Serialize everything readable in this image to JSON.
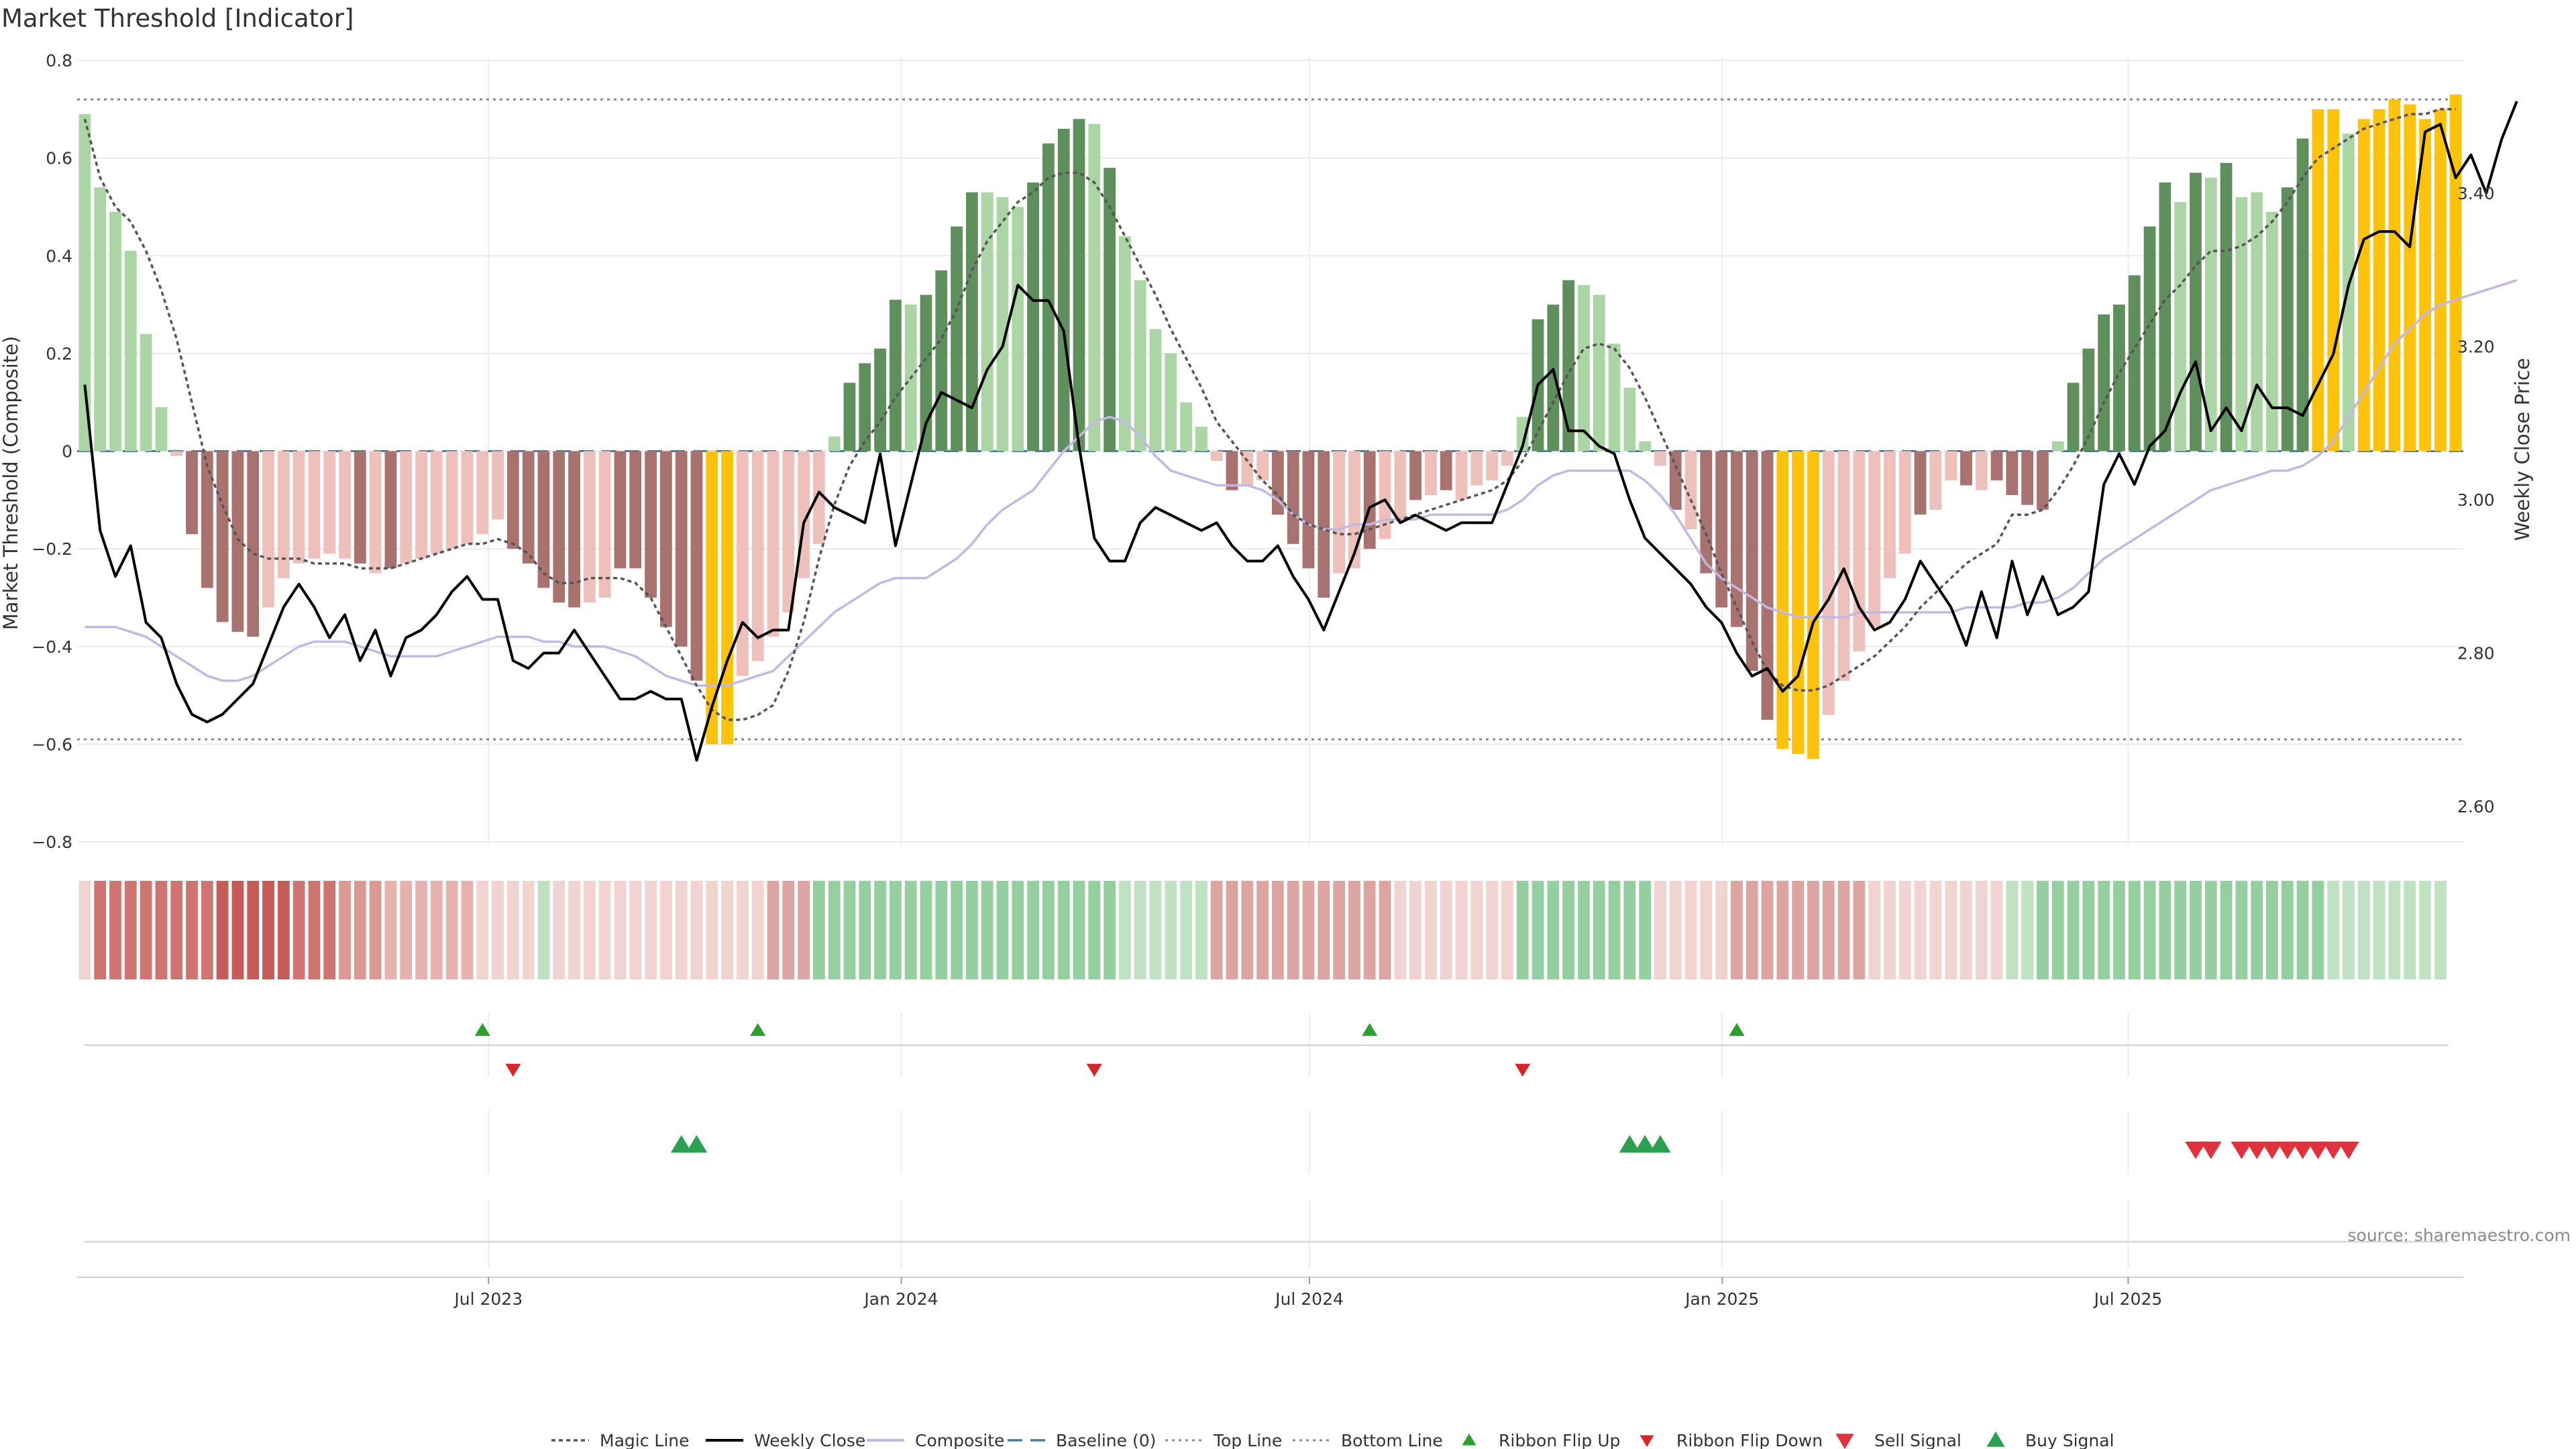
{
  "chart_data": {
    "type": "bar",
    "title": "Market Threshold [Indicator]",
    "ylabel_left": "Market Threshold (Composite)",
    "ylabel_right": "Weekly Close Price",
    "source": "source: sharemaestro.com",
    "left_axis": {
      "ylim": [
        -0.8,
        0.8
      ],
      "ticks": [
        "0.8",
        "0.6",
        "0.4",
        "0.2",
        "0",
        "−0.2",
        "−0.4",
        "−0.6",
        "−0.8"
      ],
      "tick_values": [
        0.8,
        0.6,
        0.4,
        0.2,
        0,
        -0.2,
        -0.4,
        -0.6,
        -0.8
      ]
    },
    "right_axis": {
      "ylim": [
        2.52,
        3.6
      ],
      "ticks": [
        "3.40",
        "3.20",
        "3.00",
        "2.80",
        "2.60"
      ],
      "tick_values": [
        3.4,
        3.2,
        3.0,
        2.8,
        2.6
      ]
    },
    "x_axis": {
      "start": "2023-01-02",
      "end": "2025-11-24",
      "ticks": [
        {
          "label": "Jul 2023",
          "date": "2023-07-01"
        },
        {
          "label": "Jan 2024",
          "date": "2024-01-01"
        },
        {
          "label": "Jul 2024",
          "date": "2024-07-01"
        },
        {
          "label": "Jan 2025",
          "date": "2025-01-01"
        },
        {
          "label": "Jul 2025",
          "date": "2025-07-01"
        }
      ]
    },
    "grid": true,
    "legend_position": "bottom-center",
    "colors": {
      "strong_up": "#5e8f5c",
      "weak_up": "#acd5a6",
      "strong_down": "#a77270",
      "weak_down": "#edc0bc",
      "extreme": "#fdc20b",
      "weekly_close": "#000000",
      "magic_line": "#555555",
      "composite": "#c4b8e2",
      "baseline": "#4a7ba0",
      "ribbon_flip_up": "#2ca02c",
      "ribbon_flip_down": "#d62728",
      "sell_signal": "#e0323c",
      "buy_signal": "#2ca050"
    },
    "reference_lines": {
      "top_line": 0.72,
      "bottom_line": -0.59,
      "baseline": 0
    },
    "histogram": {
      "values": [
        0.69,
        0.54,
        0.49,
        0.41,
        0.24,
        0.09,
        -0.01,
        -0.17,
        -0.28,
        -0.35,
        -0.37,
        -0.38,
        -0.32,
        -0.26,
        -0.23,
        -0.22,
        -0.21,
        -0.22,
        -0.23,
        -0.25,
        -0.24,
        -0.23,
        -0.22,
        -0.21,
        -0.2,
        -0.19,
        -0.17,
        -0.14,
        -0.2,
        -0.23,
        -0.28,
        -0.31,
        -0.32,
        -0.31,
        -0.3,
        -0.24,
        -0.24,
        -0.3,
        -0.36,
        -0.4,
        -0.47,
        -0.6,
        -0.6,
        -0.46,
        -0.43,
        -0.38,
        -0.33,
        -0.26,
        -0.19,
        0.03,
        0.14,
        0.18,
        0.21,
        0.31,
        0.3,
        0.32,
        0.37,
        0.46,
        0.53,
        0.53,
        0.52,
        0.5,
        0.55,
        0.63,
        0.66,
        0.68,
        0.67,
        0.58,
        0.44,
        0.35,
        0.25,
        0.2,
        0.1,
        0.05,
        -0.02,
        -0.08,
        -0.07,
        -0.06,
        -0.13,
        -0.19,
        -0.24,
        -0.3,
        -0.25,
        -0.24,
        -0.2,
        -0.18,
        -0.14,
        -0.1,
        -0.09,
        -0.08,
        -0.1,
        -0.07,
        -0.06,
        -0.03,
        0.07,
        0.27,
        0.3,
        0.35,
        0.34,
        0.32,
        0.22,
        0.13,
        0.02,
        -0.03,
        -0.12,
        -0.16,
        -0.25,
        -0.32,
        -0.36,
        -0.45,
        -0.55,
        -0.61,
        -0.62,
        -0.63,
        -0.54,
        -0.47,
        -0.41,
        -0.36,
        -0.26,
        -0.21,
        -0.13,
        -0.12,
        -0.06,
        -0.07,
        -0.08,
        -0.06,
        -0.09,
        -0.11,
        -0.12,
        0.02,
        0.14,
        0.21,
        0.28,
        0.3,
        0.36,
        0.46,
        0.55,
        0.51,
        0.57,
        0.56,
        0.59,
        0.52,
        0.53,
        0.49,
        0.54,
        0.64,
        0.7,
        0.7,
        0.65,
        0.68,
        0.7,
        0.72,
        0.71,
        0.68,
        0.7,
        0.73
      ],
      "styles": [
        "wu",
        "wu",
        "wu",
        "wu",
        "wu",
        "wu",
        "wd",
        "sd",
        "sd",
        "sd",
        "sd",
        "sd",
        "wd",
        "wd",
        "wd",
        "wd",
        "wd",
        "wd",
        "sd",
        "wd",
        "sd",
        "wd",
        "wd",
        "wd",
        "wd",
        "wd",
        "wd",
        "wd",
        "sd",
        "sd",
        "sd",
        "sd",
        "sd",
        "wd",
        "wd",
        "sd",
        "sd",
        "sd",
        "sd",
        "sd",
        "sd",
        "ex",
        "ex",
        "wd",
        "wd",
        "wd",
        "wd",
        "wd",
        "wd",
        "wu",
        "su",
        "su",
        "su",
        "su",
        "wu",
        "su",
        "su",
        "su",
        "su",
        "wu",
        "wu",
        "wu",
        "su",
        "su",
        "su",
        "su",
        "wu",
        "su",
        "wu",
        "wu",
        "wu",
        "wu",
        "wu",
        "wu",
        "wd",
        "sd",
        "wd",
        "wd",
        "sd",
        "sd",
        "sd",
        "sd",
        "wd",
        "wd",
        "sd",
        "wd",
        "wd",
        "sd",
        "wd",
        "sd",
        "wd",
        "wd",
        "wd",
        "wd",
        "wu",
        "su",
        "su",
        "su",
        "wu",
        "wu",
        "wu",
        "wu",
        "wu",
        "wd",
        "sd",
        "wd",
        "sd",
        "sd",
        "sd",
        "sd",
        "sd",
        "ex",
        "ex",
        "ex",
        "wd",
        "wd",
        "wd",
        "wd",
        "wd",
        "wd",
        "sd",
        "wd",
        "wd",
        "sd",
        "wd",
        "sd",
        "sd",
        "sd",
        "sd",
        "wu",
        "su",
        "su",
        "su",
        "su",
        "su",
        "su",
        "su",
        "wu",
        "su",
        "wu",
        "su",
        "wu",
        "wu",
        "wu",
        "su",
        "su",
        "ex",
        "ex",
        "wu",
        "ex",
        "ex",
        "ex",
        "ex",
        "ex",
        "ex",
        "ex"
      ]
    },
    "weekly_close": {
      "values": [
        3.15,
        2.96,
        2.9,
        2.94,
        2.84,
        2.82,
        2.76,
        2.72,
        2.71,
        2.72,
        2.74,
        2.76,
        2.81,
        2.86,
        2.89,
        2.86,
        2.82,
        2.85,
        2.79,
        2.83,
        2.77,
        2.82,
        2.83,
        2.85,
        2.88,
        2.9,
        2.87,
        2.87,
        2.79,
        2.78,
        2.8,
        2.8,
        2.83,
        2.8,
        2.77,
        2.74,
        2.74,
        2.75,
        2.74,
        2.74,
        2.66,
        2.73,
        2.79,
        2.84,
        2.82,
        2.83,
        2.83,
        2.97,
        3.01,
        2.99,
        2.98,
        2.97,
        3.06,
        2.94,
        3.02,
        3.1,
        3.14,
        3.13,
        3.12,
        3.17,
        3.2,
        3.28,
        3.26,
        3.26,
        3.22,
        3.07,
        2.95,
        2.92,
        2.92,
        2.97,
        2.99,
        2.98,
        2.97,
        2.96,
        2.97,
        2.94,
        2.92,
        2.92,
        2.94,
        2.9,
        2.87,
        2.83,
        2.88,
        2.93,
        2.99,
        3.0,
        2.97,
        2.98,
        2.97,
        2.96,
        2.97,
        2.97,
        2.97,
        3.02,
        3.07,
        3.15,
        3.17,
        3.09,
        3.09,
        3.07,
        3.06,
        3.0,
        2.95,
        2.93,
        2.91,
        2.89,
        2.86,
        2.84,
        2.8,
        2.77,
        2.78,
        2.75,
        2.77,
        2.84,
        2.87,
        2.91,
        2.86,
        2.83,
        2.84,
        2.87,
        2.92,
        2.89,
        2.86,
        2.81,
        2.88,
        2.82,
        2.92,
        2.85,
        2.9,
        2.85,
        2.86,
        2.88,
        3.02,
        3.06,
        3.02,
        3.07,
        3.09,
        3.14,
        3.18,
        3.09,
        3.12,
        3.09,
        3.15,
        3.12,
        3.12,
        3.11,
        3.15,
        3.19,
        3.28,
        3.34,
        3.35,
        3.35,
        3.33,
        3.48,
        3.49,
        3.42,
        3.45,
        3.4,
        3.47,
        3.52
      ]
    },
    "magic_line": {
      "values": [
        0.68,
        0.56,
        0.5,
        0.47,
        0.41,
        0.33,
        0.23,
        0.1,
        -0.03,
        -0.11,
        -0.18,
        -0.21,
        -0.22,
        -0.22,
        -0.22,
        -0.23,
        -0.23,
        -0.23,
        -0.24,
        -0.24,
        -0.24,
        -0.23,
        -0.22,
        -0.21,
        -0.2,
        -0.19,
        -0.19,
        -0.18,
        -0.19,
        -0.21,
        -0.25,
        -0.27,
        -0.27,
        -0.26,
        -0.26,
        -0.26,
        -0.27,
        -0.3,
        -0.36,
        -0.42,
        -0.48,
        -0.53,
        -0.55,
        -0.55,
        -0.54,
        -0.52,
        -0.45,
        -0.35,
        -0.22,
        -0.11,
        -0.03,
        0.02,
        0.06,
        0.11,
        0.15,
        0.19,
        0.23,
        0.29,
        0.37,
        0.43,
        0.47,
        0.51,
        0.53,
        0.56,
        0.57,
        0.57,
        0.55,
        0.5,
        0.44,
        0.38,
        0.32,
        0.25,
        0.19,
        0.13,
        0.06,
        0.02,
        -0.02,
        -0.06,
        -0.09,
        -0.13,
        -0.15,
        -0.16,
        -0.17,
        -0.17,
        -0.16,
        -0.15,
        -0.14,
        -0.13,
        -0.12,
        -0.11,
        -0.1,
        -0.09,
        -0.08,
        -0.06,
        -0.02,
        0.04,
        0.1,
        0.16,
        0.21,
        0.22,
        0.21,
        0.17,
        0.11,
        0.04,
        -0.03,
        -0.1,
        -0.17,
        -0.25,
        -0.32,
        -0.39,
        -0.45,
        -0.48,
        -0.49,
        -0.49,
        -0.48,
        -0.46,
        -0.44,
        -0.42,
        -0.39,
        -0.36,
        -0.32,
        -0.29,
        -0.26,
        -0.23,
        -0.21,
        -0.19,
        -0.13,
        -0.13,
        -0.12,
        -0.08,
        -0.03,
        0.03,
        0.1,
        0.16,
        0.21,
        0.26,
        0.31,
        0.34,
        0.38,
        0.41,
        0.41,
        0.42,
        0.44,
        0.47,
        0.51,
        0.56,
        0.6,
        0.62,
        0.64,
        0.66,
        0.67,
        0.68,
        0.69,
        0.69,
        0.7,
        0.7
      ]
    },
    "composite": {
      "values": [
        -0.36,
        -0.36,
        -0.36,
        -0.37,
        -0.38,
        -0.4,
        -0.42,
        -0.44,
        -0.46,
        -0.47,
        -0.47,
        -0.46,
        -0.44,
        -0.42,
        -0.4,
        -0.39,
        -0.39,
        -0.39,
        -0.4,
        -0.41,
        -0.42,
        -0.42,
        -0.42,
        -0.42,
        -0.41,
        -0.4,
        -0.39,
        -0.38,
        -0.38,
        -0.38,
        -0.39,
        -0.39,
        -0.4,
        -0.4,
        -0.4,
        -0.41,
        -0.42,
        -0.44,
        -0.46,
        -0.47,
        -0.48,
        -0.48,
        -0.48,
        -0.47,
        -0.46,
        -0.45,
        -0.42,
        -0.39,
        -0.36,
        -0.33,
        -0.31,
        -0.29,
        -0.27,
        -0.26,
        -0.26,
        -0.26,
        -0.24,
        -0.22,
        -0.19,
        -0.15,
        -0.12,
        -0.1,
        -0.08,
        -0.04,
        0.0,
        0.03,
        0.06,
        0.07,
        0.06,
        0.03,
        -0.01,
        -0.04,
        -0.05,
        -0.06,
        -0.07,
        -0.07,
        -0.07,
        -0.08,
        -0.1,
        -0.13,
        -0.15,
        -0.16,
        -0.16,
        -0.15,
        -0.15,
        -0.14,
        -0.14,
        -0.14,
        -0.13,
        -0.13,
        -0.13,
        -0.13,
        -0.13,
        -0.12,
        -0.1,
        -0.07,
        -0.05,
        -0.04,
        -0.04,
        -0.04,
        -0.04,
        -0.04,
        -0.06,
        -0.09,
        -0.13,
        -0.18,
        -0.23,
        -0.26,
        -0.28,
        -0.3,
        -0.32,
        -0.33,
        -0.34,
        -0.34,
        -0.34,
        -0.34,
        -0.33,
        -0.33,
        -0.33,
        -0.33,
        -0.33,
        -0.33,
        -0.33,
        -0.32,
        -0.32,
        -0.32,
        -0.32,
        -0.31,
        -0.31,
        -0.3,
        -0.28,
        -0.25,
        -0.22,
        -0.2,
        -0.18,
        -0.16,
        -0.14,
        -0.12,
        -0.1,
        -0.08,
        -0.07,
        -0.06,
        -0.05,
        -0.04,
        -0.04,
        -0.03,
        -0.01,
        0.02,
        0.07,
        0.12,
        0.17,
        0.22,
        0.25,
        0.28,
        0.3,
        0.31,
        0.32,
        0.33,
        0.34,
        0.35
      ]
    },
    "ribbon": {
      "styles": [
        "p1",
        "r4",
        "r4",
        "r4",
        "r4",
        "r4",
        "r4",
        "r4",
        "r4",
        "r5",
        "r5",
        "r5",
        "r5",
        "r5",
        "r4",
        "r4",
        "r4",
        "r3",
        "r3",
        "r3",
        "r2",
        "r2",
        "r2",
        "r2",
        "r2",
        "r2",
        "p1",
        "p1",
        "p1",
        "p1",
        "g1",
        "p1",
        "p1",
        "p1",
        "p1",
        "p1",
        "p1",
        "p1",
        "p1",
        "p1",
        "p1",
        "p1",
        "p1",
        "p1",
        "p1",
        "p2",
        "p2",
        "p2",
        "g2",
        "g2",
        "g2",
        "g2",
        "g2",
        "g2",
        "g2",
        "g2",
        "g2",
        "g2",
        "g2",
        "g2",
        "g2",
        "g2",
        "g2",
        "g2",
        "g2",
        "g2",
        "g2",
        "g2",
        "g1",
        "g1",
        "g1",
        "g1",
        "g1",
        "g1",
        "p2",
        "p2",
        "p2",
        "p2",
        "p2",
        "p2",
        "p2",
        "p2",
        "p2",
        "p2",
        "p2",
        "p2",
        "p1",
        "p1",
        "p1",
        "p1",
        "p1",
        "p1",
        "p1",
        "p1",
        "g2",
        "g2",
        "g2",
        "g2",
        "g2",
        "g2",
        "g2",
        "g2",
        "g2",
        "p1",
        "p1",
        "p1",
        "p1",
        "p1",
        "p2",
        "p2",
        "p2",
        "p2",
        "p2",
        "p2",
        "p2",
        "p2",
        "p2",
        "p1",
        "p1",
        "p1",
        "p1",
        "p1",
        "p1",
        "p1",
        "p1",
        "p1",
        "g1",
        "g1",
        "g2",
        "g2",
        "g2",
        "g2",
        "g2",
        "g2",
        "g2",
        "g2",
        "g2",
        "g2",
        "g2",
        "g2",
        "g2",
        "g2",
        "g2",
        "g2",
        "g2",
        "g2",
        "g2",
        "g1",
        "g1",
        "g1",
        "g1",
        "g1",
        "g1",
        "g1",
        "g1"
      ]
    },
    "ribbon_flip_up_idx": [
      26,
      44,
      84,
      108
    ],
    "ribbon_flip_down_idx": [
      28,
      66,
      94
    ],
    "buy_signal_idx": [
      39,
      40,
      101,
      102,
      103
    ],
    "sell_signal_idx": [
      138,
      139,
      141,
      142,
      143,
      144,
      145,
      146,
      147,
      148
    ]
  },
  "legend": [
    {
      "key": "magic",
      "label": "Magic Line"
    },
    {
      "key": "close",
      "label": "Weekly Close"
    },
    {
      "key": "composite",
      "label": "Composite"
    },
    {
      "key": "baseline",
      "label": "Baseline (0)"
    },
    {
      "key": "top",
      "label": "Top Line"
    },
    {
      "key": "bottom",
      "label": "Bottom Line"
    },
    {
      "key": "flipup",
      "label": "Ribbon Flip Up"
    },
    {
      "key": "flipdown",
      "label": "Ribbon Flip Down"
    },
    {
      "key": "sell",
      "label": "Sell Signal"
    },
    {
      "key": "buy",
      "label": "Buy Signal"
    }
  ]
}
